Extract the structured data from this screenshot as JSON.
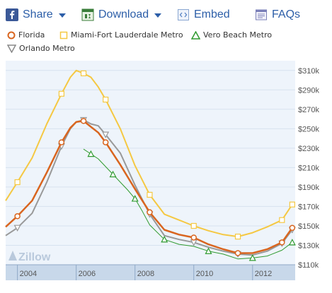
{
  "toolbar": {
    "share_label": "Share",
    "download_label": "Download",
    "embed_label": "Embed",
    "faqs_label": "FAQs",
    "icons": [
      "facebook-icon",
      "download-icon",
      "embed-icon",
      "faqs-icon"
    ]
  },
  "watermark": "Zillow",
  "colors": {
    "Florida": "#d9651f",
    "Miami-Fort Lauderdale Metro": "#f5c842",
    "Vero Beach Metro": "#2f9a2f",
    "Orlando Metro": "#999999",
    "link": "#2c5ea8",
    "plot_bg": "#eef4fb",
    "band": "#c8d8ea"
  },
  "chart_data": {
    "type": "line",
    "ylim": [
      110000,
      320000
    ],
    "xlim": [
      2003.6,
      2013.45
    ],
    "yticks": [
      110000,
      130000,
      150000,
      170000,
      190000,
      210000,
      230000,
      250000,
      270000,
      290000,
      310000
    ],
    "ytick_labels": [
      "$110k",
      "$130k",
      "$150k",
      "$170k",
      "$190k",
      "$210k",
      "$230k",
      "$250k",
      "$270k",
      "$290k",
      "$310k"
    ],
    "xticks": [
      2004,
      2006,
      2008,
      2010,
      2012
    ],
    "xtick_labels": [
      "2004",
      "2006",
      "2008",
      "2010",
      "2012"
    ],
    "legend_position": "top",
    "series": [
      {
        "name": "Florida",
        "marker": "circle",
        "x": [
          2003.6,
          2004.0,
          2004.5,
          2005.0,
          2005.5,
          2005.8,
          2006.0,
          2006.25,
          2006.5,
          2006.75,
          2007.0,
          2007.5,
          2008.0,
          2008.5,
          2009.0,
          2009.5,
          2010.0,
          2010.5,
          2011.0,
          2011.5,
          2012.0,
          2012.5,
          2013.0,
          2013.35
        ],
        "y": [
          149000,
          160000,
          176000,
          205000,
          236000,
          251000,
          257000,
          258000,
          252000,
          246000,
          236000,
          213000,
          188000,
          164000,
          146000,
          141000,
          138000,
          131000,
          126000,
          122000,
          122000,
          126000,
          133000,
          148000
        ]
      },
      {
        "name": "Miami-Fort Lauderdale Metro",
        "marker": "square",
        "x": [
          2003.6,
          2004.0,
          2004.5,
          2005.0,
          2005.5,
          2005.8,
          2006.0,
          2006.25,
          2006.5,
          2006.75,
          2007.0,
          2007.5,
          2008.0,
          2008.5,
          2009.0,
          2009.5,
          2010.0,
          2010.5,
          2011.0,
          2011.5,
          2012.0,
          2012.5,
          2013.0,
          2013.35
        ],
        "y": [
          176000,
          195000,
          220000,
          255000,
          286000,
          303000,
          310000,
          307000,
          303000,
          293000,
          280000,
          250000,
          212000,
          182000,
          162000,
          156000,
          150000,
          145000,
          141000,
          139000,
          143000,
          149000,
          156000,
          172000
        ]
      },
      {
        "name": "Vero Beach Metro",
        "marker": "triangle-up",
        "x": [
          2006.25,
          2006.5,
          2006.75,
          2007.0,
          2007.25,
          2007.5,
          2007.75,
          2008.0,
          2008.25,
          2008.5,
          2009.0,
          2009.5,
          2010.0,
          2010.5,
          2011.0,
          2011.5,
          2012.0,
          2012.5,
          2013.0,
          2013.35
        ],
        "y": [
          229000,
          224000,
          219000,
          211000,
          203000,
          195000,
          187000,
          178000,
          165000,
          151000,
          136000,
          131000,
          129000,
          124000,
          121000,
          116000,
          117000,
          119000,
          125000,
          133000
        ]
      },
      {
        "name": "Orlando Metro",
        "marker": "triangle-down",
        "x": [
          2003.6,
          2004.0,
          2004.5,
          2005.0,
          2005.5,
          2005.8,
          2006.0,
          2006.25,
          2006.5,
          2006.75,
          2007.0,
          2007.5,
          2008.0,
          2008.5,
          2009.0,
          2009.5,
          2010.0,
          2010.5,
          2011.0,
          2011.5,
          2012.0,
          2012.5,
          2013.0,
          2013.35
        ],
        "y": [
          140000,
          148000,
          163000,
          195000,
          232000,
          250000,
          257000,
          259000,
          255000,
          253000,
          244000,
          225000,
          192000,
          162000,
          140000,
          136000,
          133000,
          128000,
          124000,
          121000,
          120000,
          124000,
          132000,
          146000
        ]
      }
    ]
  }
}
